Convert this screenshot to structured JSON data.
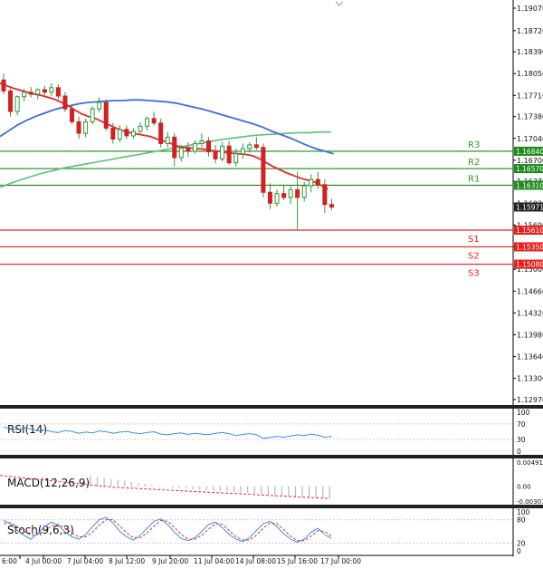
{
  "colors": {
    "support": "#e8201c",
    "resistance": "#1c8a1c",
    "level_text": "#2d9a2d",
    "support_text": "#e8201c",
    "ma_red": "#e62a2a",
    "ma_blue": "#3a6fd8",
    "ma_green": "#5cc07a",
    "candle_body": "#2e9a3a",
    "candle_bear": "#d42020",
    "current_price_box": "#222222",
    "indicator_line": "#3b8ee8",
    "macd_signal": "#e03030",
    "macd_hist": "#b8b8b8"
  },
  "chart_data": {
    "type": "candlestick",
    "symbol_pair_context": "EURUSD-like daily/4h",
    "y_ticks": [
      "1.19070",
      "1.18720",
      "1.18390",
      "1.18050",
      "1.17710",
      "1.17380",
      "1.17040",
      "1.16700",
      "1.16370",
      "1.16030",
      "1.15690",
      "1.15350",
      "1.15000",
      "1.14660",
      "1.14320",
      "1.13980",
      "1.13640",
      "1.13300",
      "1.12970"
    ],
    "ylim": [
      1.1297,
      1.1907
    ],
    "x_ticks": [
      "6:00",
      "4 Jul 00:00",
      "7 Jul 04:00",
      "8 Jul 12:00",
      "9 Jul 20:00",
      "11 Jul 04:00",
      "14 Jul 08:00",
      "15 Jul 16:00",
      "17 Jul 00:00"
    ],
    "current_price": "1.15971",
    "levels": [
      {
        "name": "R3",
        "value": 1.1684,
        "label": "1.16840",
        "kind": "resistance"
      },
      {
        "name": "R2",
        "value": 1.1657,
        "label": "1.16570",
        "kind": "resistance"
      },
      {
        "name": "R1",
        "value": 1.1631,
        "label": "1.16310",
        "kind": "resistance"
      },
      {
        "name": "S1",
        "value": 1.1561,
        "label": "1.15610",
        "kind": "support"
      },
      {
        "name": "S2",
        "value": 1.1535,
        "label": "1.15350",
        "kind": "support"
      },
      {
        "name": "S3",
        "value": 1.1508,
        "label": "1.15080",
        "kind": "support"
      }
    ],
    "candles": [
      [
        1.1795,
        1.1805,
        1.1773,
        1.1778
      ],
      [
        1.1778,
        1.1782,
        1.1738,
        1.1746
      ],
      [
        1.1746,
        1.1771,
        1.174,
        1.1769
      ],
      [
        1.1769,
        1.1781,
        1.1762,
        1.1776
      ],
      [
        1.1776,
        1.1784,
        1.1768,
        1.1773
      ],
      [
        1.1773,
        1.1782,
        1.1765,
        1.178
      ],
      [
        1.178,
        1.1786,
        1.1771,
        1.1776
      ],
      [
        1.1776,
        1.179,
        1.177,
        1.1783
      ],
      [
        1.1783,
        1.1788,
        1.1765,
        1.177
      ],
      [
        1.177,
        1.1776,
        1.1745,
        1.175
      ],
      [
        1.175,
        1.1756,
        1.1726,
        1.173
      ],
      [
        1.173,
        1.1738,
        1.1703,
        1.1712
      ],
      [
        1.1712,
        1.1735,
        1.1706,
        1.173
      ],
      [
        1.173,
        1.1754,
        1.1726,
        1.175
      ],
      [
        1.175,
        1.1768,
        1.1745,
        1.176
      ],
      [
        1.176,
        1.1765,
        1.1716,
        1.172
      ],
      [
        1.172,
        1.1728,
        1.1696,
        1.1703
      ],
      [
        1.1703,
        1.1725,
        1.1698,
        1.1718
      ],
      [
        1.1718,
        1.1724,
        1.1703,
        1.1708
      ],
      [
        1.1708,
        1.172,
        1.1704,
        1.1715
      ],
      [
        1.1715,
        1.1729,
        1.1711,
        1.1723
      ],
      [
        1.1723,
        1.1738,
        1.1716,
        1.1735
      ],
      [
        1.1735,
        1.1746,
        1.1724,
        1.1728
      ],
      [
        1.1728,
        1.1735,
        1.169,
        1.1696
      ],
      [
        1.1696,
        1.1714,
        1.169,
        1.1706
      ],
      [
        1.1706,
        1.1712,
        1.166,
        1.1674
      ],
      [
        1.1674,
        1.1694,
        1.1668,
        1.1689
      ],
      [
        1.1689,
        1.1698,
        1.1675,
        1.1684
      ],
      [
        1.1684,
        1.1701,
        1.168,
        1.1696
      ],
      [
        1.1696,
        1.1712,
        1.169,
        1.17
      ],
      [
        1.17,
        1.1706,
        1.1676,
        1.1683
      ],
      [
        1.1683,
        1.1694,
        1.1665,
        1.1672
      ],
      [
        1.1672,
        1.1698,
        1.1668,
        1.1692
      ],
      [
        1.1692,
        1.17,
        1.1663,
        1.1666
      ],
      [
        1.1666,
        1.1688,
        1.166,
        1.168
      ],
      [
        1.168,
        1.1696,
        1.1672,
        1.1688
      ],
      [
        1.1688,
        1.1698,
        1.1682,
        1.1694
      ],
      [
        1.1694,
        1.1706,
        1.1686,
        1.169
      ],
      [
        1.169,
        1.1696,
        1.1612,
        1.162
      ],
      [
        1.162,
        1.1634,
        1.1594,
        1.1603
      ],
      [
        1.1603,
        1.1624,
        1.1598,
        1.1618
      ],
      [
        1.1618,
        1.1632,
        1.1608,
        1.1612
      ],
      [
        1.1612,
        1.163,
        1.1602,
        1.1624
      ],
      [
        1.1624,
        1.1652,
        1.156,
        1.1612
      ],
      [
        1.1612,
        1.1636,
        1.1606,
        1.163
      ],
      [
        1.163,
        1.1648,
        1.162,
        1.164
      ],
      [
        1.164,
        1.1652,
        1.1625,
        1.1632
      ],
      [
        1.1632,
        1.164,
        1.1588,
        1.1601
      ],
      [
        1.1601,
        1.161,
        1.1592,
        1.1597
      ]
    ],
    "ma_red": [
      1.179,
      1.1786,
      1.1782,
      1.1779,
      1.1776,
      1.1773,
      1.1771,
      1.1768,
      1.1765,
      1.176,
      1.1755,
      1.1748,
      1.1742,
      1.1738,
      1.1735,
      1.173,
      1.1725,
      1.172,
      1.1716,
      1.1713,
      1.1711,
      1.1709,
      1.1707,
      1.1703,
      1.17,
      1.1696,
      1.1692,
      1.169,
      1.1689,
      1.1688,
      1.1687,
      1.1685,
      1.1684,
      1.1682,
      1.1681,
      1.168,
      1.1679,
      1.1677,
      1.1672,
      1.1666,
      1.166,
      1.1655,
      1.165,
      1.1646,
      1.1642,
      1.1639,
      1.1636,
      1.1631,
      1.1625
    ],
    "ma_blue": [
      1.1707,
      1.1716,
      1.1725,
      1.1732,
      1.1738,
      1.1743,
      1.1748,
      1.1752,
      1.1755,
      1.1758,
      1.176,
      1.1761,
      1.1762,
      1.1763,
      1.1763,
      1.1764,
      1.1764,
      1.1763,
      1.1762,
      1.1761,
      1.1759,
      1.1756,
      1.1753,
      1.175,
      1.1746,
      1.1742,
      1.1738,
      1.1734,
      1.173,
      1.1726,
      1.1721,
      1.1715,
      1.171,
      1.1705,
      1.1699,
      1.1693,
      1.1688,
      1.1684,
      1.168
    ],
    "ma_green": [
      1.1628,
      1.1634,
      1.164,
      1.1645,
      1.165,
      1.1654,
      1.1658,
      1.1661,
      1.1664,
      1.1667,
      1.167,
      1.1673,
      1.1676,
      1.1679,
      1.1682,
      1.1685,
      1.1688,
      1.1691,
      1.1694,
      1.1697,
      1.17,
      1.1703,
      1.1705,
      1.1707,
      1.1709,
      1.171,
      1.1711,
      1.1712,
      1.1713,
      1.1713,
      1.1714,
      1.1714
    ],
    "rsi": {
      "label": "RSI(14)",
      "ticks": [
        "100",
        "70",
        "30",
        "0"
      ],
      "ylim": [
        0,
        100
      ],
      "values": [
        62,
        58,
        55,
        60,
        57,
        52,
        55,
        50,
        48,
        53,
        51,
        46,
        49,
        47,
        52,
        50,
        46,
        49,
        51,
        47,
        45,
        48,
        50,
        44,
        42,
        45,
        47,
        43,
        46,
        44,
        42,
        46,
        48,
        45,
        40,
        43,
        45,
        42,
        33,
        35,
        38,
        36,
        39,
        42,
        40,
        44,
        41,
        36,
        38
      ]
    },
    "macd": {
      "label": "MACD(12,26,9)",
      "ticks": [
        "0.004916",
        "0.00",
        "-0.003012"
      ],
      "ylim": [
        -0.003012,
        0.004916
      ],
      "histogram": [
        0.0021,
        0.0019,
        0.0017,
        0.0015,
        0.0013,
        0.0011,
        0.0009,
        0.0007,
        0.0005,
        0.0003,
        0.0001,
        -0.0001,
        -0.0003,
        -0.0004,
        -0.0005,
        -0.0006,
        -0.0007,
        -0.0008,
        -0.0009,
        -0.001,
        -0.0011,
        -0.0012,
        -0.0013,
        -0.0014,
        -0.0015,
        -0.0016,
        -0.0017,
        -0.0018,
        -0.0019,
        -0.002,
        -0.0021,
        -0.0022,
        -0.0023,
        -0.0024,
        -0.0025,
        -0.0026
      ],
      "signal": [
        0.0022,
        0.002,
        0.0018,
        0.0016,
        0.0014,
        0.0012,
        0.001,
        0.0008,
        0.0006,
        0.0004,
        0.0002,
        0.0,
        -0.0002,
        -0.0003,
        -0.0004,
        -0.0005,
        -0.0006,
        -0.0007,
        -0.0008,
        -0.0009,
        -0.001,
        -0.0011,
        -0.0012,
        -0.0013,
        -0.0014,
        -0.0015,
        -0.0016,
        -0.0017,
        -0.0018,
        -0.0019,
        -0.002,
        -0.0021,
        -0.0022,
        -0.0023,
        -0.0024,
        -0.0025
      ]
    },
    "stoch": {
      "label": "Stoch(9,6,3)",
      "ticks": [
        "100",
        "80",
        "20",
        "0"
      ],
      "ylim": [
        0,
        100
      ],
      "k": [
        78,
        70,
        52,
        40,
        30,
        46,
        62,
        74,
        66,
        48,
        36,
        30,
        42,
        62,
        80,
        86,
        72,
        50,
        36,
        28,
        40,
        58,
        76,
        82,
        68,
        48,
        32,
        26,
        34,
        50,
        68,
        74,
        60,
        42,
        30,
        24,
        34,
        52,
        70,
        76,
        62,
        44,
        30,
        22,
        30,
        48,
        58,
        42,
        32
      ],
      "d": [
        70,
        72,
        62,
        50,
        40,
        42,
        52,
        64,
        68,
        58,
        46,
        36,
        36,
        48,
        66,
        80,
        80,
        64,
        46,
        34,
        34,
        46,
        64,
        78,
        76,
        60,
        42,
        30,
        30,
        40,
        56,
        70,
        68,
        52,
        36,
        28,
        28,
        40,
        58,
        72,
        70,
        54,
        38,
        26,
        26,
        38,
        52,
        50,
        38
      ]
    }
  }
}
